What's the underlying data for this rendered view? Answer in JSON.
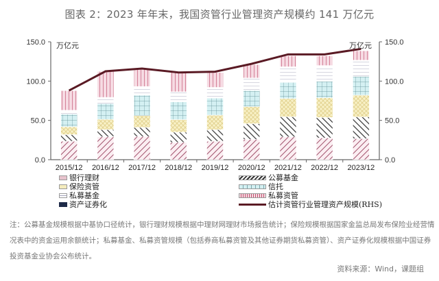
{
  "title": "图表 2：2023 年年末，我国资管行业管理资产规模约 141 万亿元",
  "unit_left": "万亿元",
  "unit_right": "万亿元",
  "legend": {
    "bank_wm": "银行理财",
    "mutual_fund": "公募基金",
    "insurance": "保险资管",
    "trust": "信托",
    "private_fund": "私募基金",
    "private_am": "私募资管",
    "abs": "资产证券化",
    "total_line": "估计资管行业管理资产规模(RHS)"
  },
  "note": "注：公募基金规模根据中基协口径统计，银行理财规模根据中理财网理财市场报告统计；保险规模根据国家金监总局发布保险业经营情况表中的资金运用余额统计；私募基金、私募资管规模（包括券商私募资管及其他证券期货私募资管）、资产证券化规模根据中国证券投资基金业协会公布统计。",
  "source": "资料来源：Wind，课题组",
  "colors": {
    "bank_wm": "#b0607a",
    "mutual_fund": "#333333",
    "insurance": "#f1e6a8",
    "trust": "#bfe6ea",
    "private_fund": "#c8c8d8",
    "private_am": "#c0506e",
    "line": "#5a1a24"
  },
  "chart_data": {
    "type": "bar",
    "stacked": true,
    "title": "图表 2：2023 年年末，我国资管行业管理资产规模约 141 万亿元",
    "xlabel": "",
    "ylabel": "万亿元",
    "ylim": [
      0,
      150
    ],
    "y_ticks": [
      "0.0",
      "50.0",
      "100.0",
      "150.0"
    ],
    "y2lim": [
      0,
      150
    ],
    "y2_ticks": [
      "0.0",
      "50.0",
      "100.0",
      "150.0"
    ],
    "categories": [
      "2015/12",
      "2016/12",
      "2017/12",
      "2018/12",
      "2019/12",
      "2020/12",
      "2021/12",
      "2022/12",
      "2023/12"
    ],
    "series": [
      {
        "name": "银行理财",
        "values": [
          23.5,
          29.1,
          29.5,
          22.0,
          23.4,
          25.9,
          29.0,
          27.7,
          26.8
        ]
      },
      {
        "name": "公募基金",
        "values": [
          8.4,
          9.2,
          11.6,
          13.0,
          14.8,
          19.9,
          25.6,
          26.0,
          27.6
        ]
      },
      {
        "name": "保险资管",
        "values": [
          10.0,
          13.0,
          15.0,
          16.0,
          18.5,
          21.7,
          23.2,
          25.0,
          27.7
        ]
      },
      {
        "name": "信托",
        "values": [
          16.0,
          20.0,
          26.0,
          22.7,
          21.6,
          20.5,
          20.6,
          21.1,
          23.9
        ]
      },
      {
        "name": "私募基金",
        "values": [
          5.0,
          8.0,
          11.0,
          12.7,
          13.7,
          16.0,
          19.8,
          20.0,
          20.6
        ]
      },
      {
        "name": "私募资管",
        "values": [
          25.0,
          33.0,
          22.0,
          24.6,
          19.0,
          17.0,
          14.0,
          12.4,
          12.0
        ]
      },
      {
        "name": "资产证券化",
        "values": [
          0,
          0,
          0,
          0,
          0,
          0,
          0,
          0,
          0
        ]
      }
    ],
    "line_series": {
      "name": "估计资管行业管理资产规模(RHS)",
      "axis": "right",
      "values": [
        88,
        112.5,
        116,
        111,
        112,
        122,
        134,
        134,
        141
      ]
    },
    "legend_position": "bottom",
    "grid": false
  }
}
